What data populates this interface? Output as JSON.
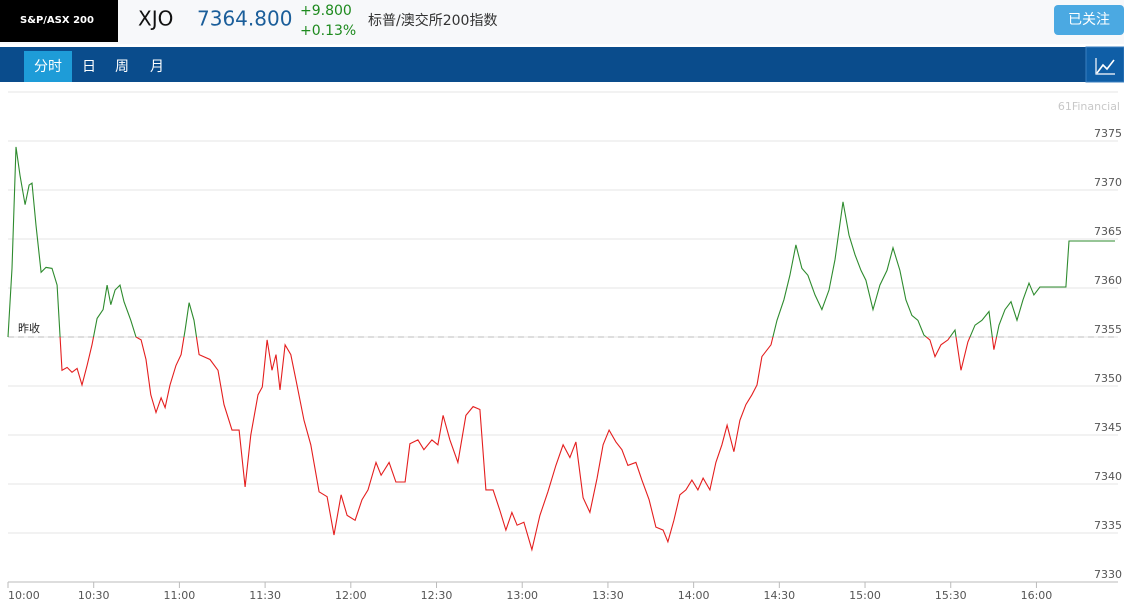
{
  "header": {
    "logo": "S&P/ASX 200",
    "symbol": "XJO",
    "price": "7364.800",
    "change": "+9.800",
    "change_pct": "+0.13%",
    "name": "标普/澳交所200指数",
    "follow_button": "已关注"
  },
  "tabs": [
    "分时",
    "日",
    "周",
    "月"
  ],
  "chart_data": {
    "type": "line",
    "watermark": "61Financial",
    "x": [
      600,
      601.4,
      602.8,
      604.2,
      606,
      607.4,
      608.4,
      609.8,
      611.6,
      613.3,
      615.4,
      617.2,
      618.9,
      620.7,
      622.4,
      624.2,
      625.9,
      627.7,
      629.4,
      631.2,
      633.3,
      634.7,
      636,
      637.5,
      639.2,
      640.6,
      643,
      644.8,
      646.6,
      648.3,
      650,
      651.8,
      653.6,
      655,
      656.7,
      658.8,
      660.6,
      662,
      663.4,
      665.1,
      666.9,
      670.7,
      673.5,
      675.6,
      678.4,
      680.9,
      683,
      685,
      687.5,
      689,
      690.7,
      692.4,
      693.8,
      695.2,
      697,
      699,
      700.8,
      703.6,
      706,
      708.9,
      711.7,
      714.1,
      716.6,
      718.7,
      721.5,
      723.9,
      726,
      728.8,
      730.6,
      733.4,
      735.8,
      739,
      740.7,
      743.5,
      745.6,
      748.4,
      750.5,
      752.3,
      754.7,
      757.5,
      760.3,
      762.8,
      765.2,
      767.3,
      769.8,
      772.2,
      774.3,
      776.4,
      778.2,
      780.6,
      783.4,
      786.2,
      789,
      791.8,
      794.3,
      796.7,
      798.8,
      801.3,
      803.7,
      806.2,
      808.3,
      810.4,
      812.8,
      814.9,
      817,
      819.8,
      821.9,
      824.4,
      826.8,
      829.3,
      831,
      833.1,
      835.2,
      837.3,
      839.4,
      841.5,
      843.3,
      845.7,
      847.8,
      849.9,
      851.7,
      854.1,
      856.2,
      858.3,
      860.4,
      862.2,
      863.9,
      867.1,
      869.2,
      871.6,
      873.7,
      875.8,
      877.9,
      880,
      882.5,
      884.9,
      887.4,
      889.5,
      892.3,
      894.4,
      896.5,
      898.6,
      900.3,
      902.8,
      905.2,
      907.7,
      909.8,
      912.2,
      914.3,
      916.4,
      918.5,
      920.6,
      922.7,
      924.5,
      926.6,
      929,
      931.5,
      933.6,
      936,
      938.5,
      940.9,
      943.4,
      945.1,
      946.9,
      949,
      951.1,
      953.2,
      955.3,
      957.4,
      959.1,
      961.2,
      964.7,
      970.3,
      971.4,
      987.5
    ],
    "values": [
      7355.0,
      7362.0,
      7374.4,
      7371.5,
      7368.5,
      7370.5,
      7370.7,
      7366.4,
      7361.6,
      7362.1,
      7362.0,
      7360.3,
      7351.6,
      7351.9,
      7351.4,
      7351.8,
      7350.1,
      7352.1,
      7354.2,
      7356.9,
      7357.8,
      7360.3,
      7358.3,
      7359.8,
      7360.3,
      7358.6,
      7356.7,
      7355.0,
      7354.7,
      7352.7,
      7349.1,
      7347.3,
      7348.8,
      7347.8,
      7350.1,
      7352.1,
      7353.2,
      7355.7,
      7358.5,
      7356.7,
      7353.2,
      7352.7,
      7351.6,
      7348.1,
      7345.5,
      7345.5,
      7339.7,
      7345.0,
      7349.1,
      7349.9,
      7354.7,
      7351.6,
      7353.2,
      7349.6,
      7354.2,
      7353.2,
      7350.6,
      7346.5,
      7344.0,
      7339.2,
      7338.7,
      7334.8,
      7338.9,
      7336.8,
      7336.3,
      7338.4,
      7339.4,
      7342.2,
      7340.9,
      7342.2,
      7340.2,
      7340.2,
      7344.1,
      7344.5,
      7343.5,
      7344.5,
      7344.0,
      7347.0,
      7344.5,
      7342.2,
      7347.0,
      7347.9,
      7347.6,
      7339.4,
      7339.4,
      7337.3,
      7335.3,
      7337.1,
      7335.8,
      7336.1,
      7333.3,
      7336.8,
      7339.2,
      7341.9,
      7344.0,
      7342.7,
      7344.3,
      7338.6,
      7337.1,
      7340.6,
      7344.0,
      7345.5,
      7344.3,
      7343.5,
      7341.9,
      7342.2,
      7340.4,
      7338.4,
      7335.6,
      7335.3,
      7334.1,
      7336.3,
      7338.9,
      7339.4,
      7340.4,
      7339.4,
      7340.6,
      7339.4,
      7342.2,
      7344.0,
      7346.0,
      7343.3,
      7346.5,
      7348.1,
      7349.1,
      7350.1,
      7353.0,
      7354.2,
      7356.7,
      7358.8,
      7361.3,
      7364.4,
      7362.0,
      7361.3,
      7359.3,
      7357.8,
      7359.8,
      7362.9,
      7368.8,
      7365.4,
      7363.4,
      7361.8,
      7360.8,
      7357.8,
      7360.3,
      7361.8,
      7364.1,
      7361.8,
      7358.8,
      7357.2,
      7356.7,
      7355.2,
      7354.7,
      7353.0,
      7354.2,
      7354.7,
      7355.7,
      7351.6,
      7354.5,
      7356.2,
      7356.7,
      7357.6,
      7353.7,
      7356.2,
      7357.8,
      7358.6,
      7356.7,
      7358.8,
      7360.5,
      7359.3,
      7360.1,
      7360.1,
      7360.1,
      7364.8,
      7364.8
    ],
    "up_color": "#2e8b2e",
    "down_color": "#e41e1e",
    "reference_line": {
      "value": 7355,
      "label": "昨收"
    },
    "xlim": [
      600,
      987.5
    ],
    "xticks": [
      {
        "value": 600,
        "label": "10:00"
      },
      {
        "value": 630,
        "label": "10:30"
      },
      {
        "value": 660,
        "label": "11:00"
      },
      {
        "value": 690,
        "label": "11:30"
      },
      {
        "value": 720,
        "label": "12:00"
      },
      {
        "value": 750,
        "label": "12:30"
      },
      {
        "value": 780,
        "label": "13:00"
      },
      {
        "value": 810,
        "label": "13:30"
      },
      {
        "value": 840,
        "label": "14:00"
      },
      {
        "value": 870,
        "label": "14:30"
      },
      {
        "value": 900,
        "label": "15:00"
      },
      {
        "value": 930,
        "label": "15:30"
      },
      {
        "value": 960,
        "label": "16:00"
      }
    ],
    "ylim": [
      7330,
      7380
    ],
    "yticks": [
      7330,
      7335,
      7340,
      7345,
      7350,
      7355,
      7360,
      7365,
      7370,
      7375
    ],
    "grid": true
  }
}
